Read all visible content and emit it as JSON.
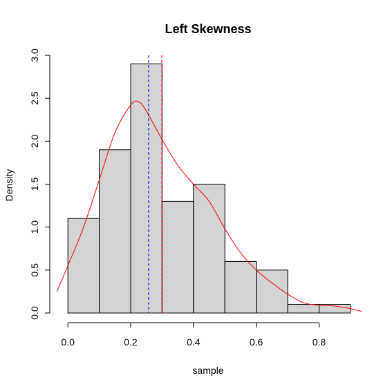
{
  "chart_data": {
    "type": "histogram",
    "title": "Left Skewness",
    "xlabel": "sample",
    "ylabel": "Density",
    "xlim": [
      -0.04,
      0.94
    ],
    "ylim": [
      0,
      3.0
    ],
    "x_ticks": [
      0.0,
      0.2,
      0.4,
      0.6,
      0.8
    ],
    "x_tick_labels": [
      "0.0",
      "0.2",
      "0.4",
      "0.6",
      "0.8"
    ],
    "y_ticks": [
      0.0,
      0.5,
      1.0,
      1.5,
      2.0,
      2.5,
      3.0
    ],
    "y_tick_labels": [
      "0.0",
      "0.5",
      "1.0",
      "1.5",
      "2.0",
      "2.5",
      "3.0"
    ],
    "bins": [
      {
        "x0": 0.0,
        "x1": 0.1,
        "density": 1.1
      },
      {
        "x0": 0.1,
        "x1": 0.2,
        "density": 1.9
      },
      {
        "x0": 0.2,
        "x1": 0.3,
        "density": 2.9
      },
      {
        "x0": 0.3,
        "x1": 0.4,
        "density": 1.3
      },
      {
        "x0": 0.4,
        "x1": 0.5,
        "density": 1.5
      },
      {
        "x0": 0.5,
        "x1": 0.6,
        "density": 0.6
      },
      {
        "x0": 0.6,
        "x1": 0.7,
        "density": 0.5
      },
      {
        "x0": 0.7,
        "x1": 0.8,
        "density": 0.1
      },
      {
        "x0": 0.8,
        "x1": 0.9,
        "density": 0.1
      }
    ],
    "density_curve": {
      "x": [
        -0.035,
        0.0,
        0.05,
        0.1,
        0.15,
        0.2,
        0.225,
        0.25,
        0.3,
        0.35,
        0.4,
        0.45,
        0.5,
        0.55,
        0.6,
        0.65,
        0.7,
        0.75,
        0.8,
        0.85,
        0.9,
        0.935
      ],
      "y": [
        0.25,
        0.55,
        1.0,
        1.55,
        2.1,
        2.42,
        2.46,
        2.35,
        2.02,
        1.72,
        1.5,
        1.3,
        0.98,
        0.7,
        0.5,
        0.35,
        0.22,
        0.12,
        0.09,
        0.08,
        0.05,
        0.02
      ]
    },
    "vlines": [
      {
        "x": 0.257,
        "color": "#0000ff",
        "style": "dashed"
      },
      {
        "x": 0.299,
        "color": "#ff0000",
        "style": "dashed"
      }
    ],
    "colors": {
      "bar_fill": "#d3d3d3",
      "bar_stroke": "#000000",
      "density_curve": "#ff0000"
    }
  }
}
